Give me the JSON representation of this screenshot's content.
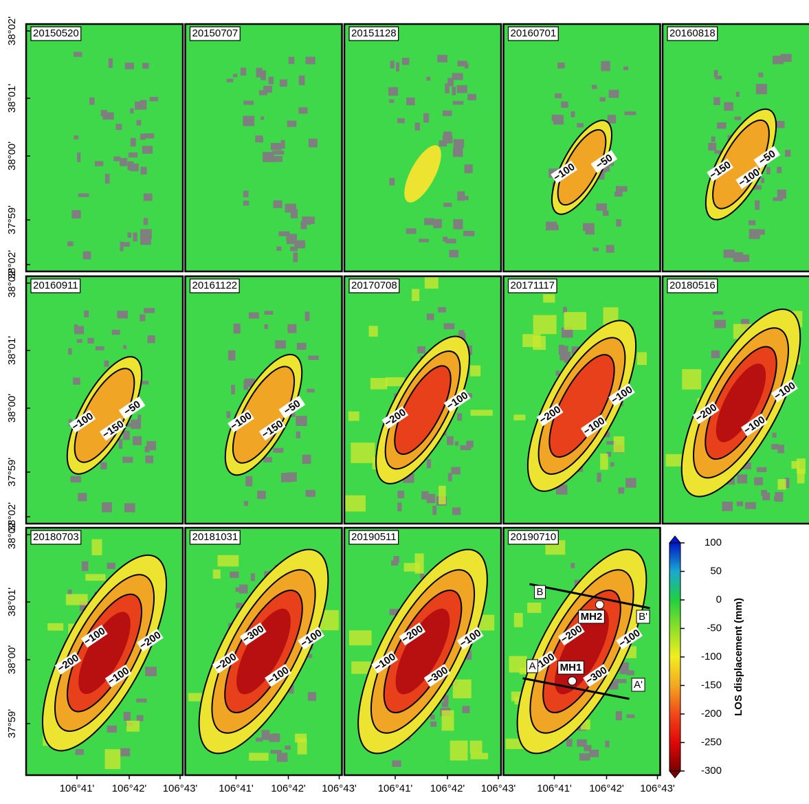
{
  "panels": [
    {
      "date": "20150520",
      "contours": []
    },
    {
      "date": "20150707",
      "contours": []
    },
    {
      "date": "20151128",
      "contours": []
    },
    {
      "date": "20160701",
      "contours": [
        "−50",
        "−100"
      ]
    },
    {
      "date": "20160818",
      "contours": [
        "−50",
        "−150",
        "−100"
      ]
    },
    {
      "date": "20160911",
      "contours": [
        "−50",
        "−100",
        "−150"
      ]
    },
    {
      "date": "20161122",
      "contours": [
        "−50",
        "−100",
        "−150"
      ]
    },
    {
      "date": "20170708",
      "contours": [
        "−100",
        "−200"
      ]
    },
    {
      "date": "20171117",
      "contours": [
        "−100",
        "−200",
        "−100"
      ]
    },
    {
      "date": "20180516",
      "contours": [
        "−100",
        "−200",
        "−100"
      ]
    },
    {
      "date": "20180703",
      "contours": [
        "−200",
        "−200",
        "−100",
        "−100"
      ]
    },
    {
      "date": "20181031",
      "contours": [
        "−100",
        "−200",
        "−100",
        "−300"
      ]
    },
    {
      "date": "20190511",
      "contours": [
        "−100",
        "−100",
        "−300",
        "−200"
      ]
    },
    {
      "date": "20190710",
      "contours": [
        "−100",
        "−100",
        "−300",
        "−200"
      ]
    }
  ],
  "y_axis_rows": [
    [
      "38°02'",
      "38°01'",
      "38°00'",
      "37°59'",
      "38°02'"
    ],
    [
      "38°02'",
      "38°01'",
      "38°00'",
      "37°59'",
      "38°02'"
    ],
    [
      "38°02'",
      "38°01'",
      "38°00'",
      "37°59'"
    ]
  ],
  "x_axis_columns": [
    [
      "106°41'",
      "106°42'",
      "106°43'"
    ],
    [
      "106°41'",
      "106°42'",
      "106°43'"
    ],
    [
      "106°41'",
      "106°42'",
      "106°43'"
    ],
    [
      "106°41'",
      "106°42'",
      "106°43'"
    ]
  ],
  "profile_labels": [
    "A",
    "A'",
    "B",
    "B'",
    "MH1",
    "MH2"
  ],
  "colorbar": {
    "label": "LOS displacement (mm)",
    "lim": [
      -300,
      100
    ],
    "ticks": [
      100,
      50,
      0,
      -50,
      -100,
      -150,
      -200,
      -250,
      -300
    ]
  }
}
